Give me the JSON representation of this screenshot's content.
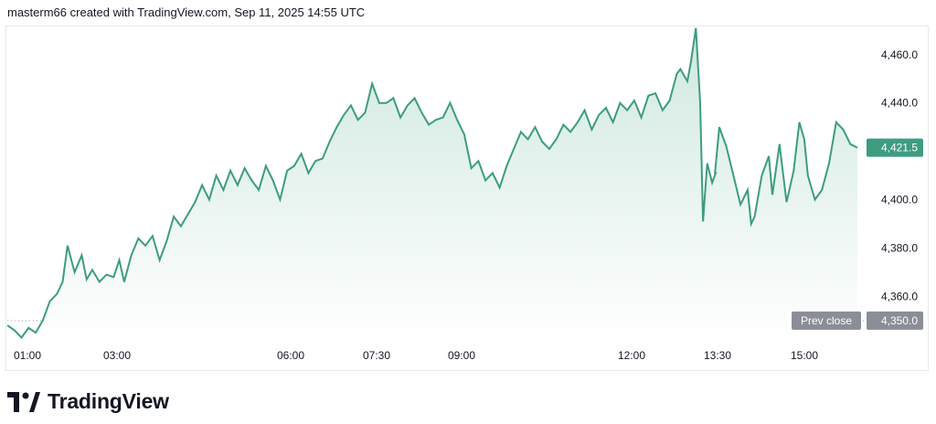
{
  "header": {
    "text": "masterm66 created with TradingView.com, Sep 11, 2025 14:55 UTC"
  },
  "brand": {
    "name": "TradingView",
    "logo_icon": "tradingview-logo-icon"
  },
  "colors": {
    "line": "#3d9c82",
    "fill_top": "#cfe8df",
    "fill_bottom": "#ffffff",
    "label_bg": "#3d9c82",
    "prev_close_bg": "#8a8e97",
    "grid": "#e6e8ec"
  },
  "chart_data": {
    "type": "area",
    "x_ticks": [
      "01:00",
      "03:00",
      "06:00",
      "07:30",
      "09:00",
      "12:00",
      "13:30",
      "15:00"
    ],
    "y_ticks": [
      "4,460.0",
      "4,440.0",
      "4,420.0",
      "4,400.0",
      "4,380.0",
      "4,360.0"
    ],
    "ylim": [
      4342,
      4472
    ],
    "last_value": 4421.5,
    "last_label": "4,421.5",
    "prev_close": 4350.0,
    "prev_close_label": "4,350.0",
    "prev_close_text": "Prev close",
    "points": [
      [
        0.0,
        4348
      ],
      [
        0.01,
        4346
      ],
      [
        0.02,
        4343
      ],
      [
        0.03,
        4347
      ],
      [
        0.04,
        4345
      ],
      [
        0.05,
        4350
      ],
      [
        0.06,
        4358
      ],
      [
        0.07,
        4361
      ],
      [
        0.078,
        4366
      ],
      [
        0.085,
        4381
      ],
      [
        0.095,
        4370
      ],
      [
        0.105,
        4377
      ],
      [
        0.112,
        4367
      ],
      [
        0.12,
        4371
      ],
      [
        0.13,
        4366
      ],
      [
        0.14,
        4369
      ],
      [
        0.15,
        4368
      ],
      [
        0.158,
        4375
      ],
      [
        0.165,
        4366
      ],
      [
        0.175,
        4377
      ],
      [
        0.185,
        4384
      ],
      [
        0.195,
        4381
      ],
      [
        0.205,
        4385
      ],
      [
        0.215,
        4375
      ],
      [
        0.225,
        4383
      ],
      [
        0.235,
        4393
      ],
      [
        0.245,
        4389
      ],
      [
        0.255,
        4394
      ],
      [
        0.265,
        4399
      ],
      [
        0.275,
        4406
      ],
      [
        0.285,
        4400
      ],
      [
        0.295,
        4410
      ],
      [
        0.305,
        4404
      ],
      [
        0.315,
        4412
      ],
      [
        0.325,
        4406
      ],
      [
        0.335,
        4413
      ],
      [
        0.345,
        4408
      ],
      [
        0.355,
        4404
      ],
      [
        0.365,
        4414
      ],
      [
        0.375,
        4408
      ],
      [
        0.385,
        4400
      ],
      [
        0.395,
        4412
      ],
      [
        0.405,
        4414
      ],
      [
        0.415,
        4419
      ],
      [
        0.425,
        4411
      ],
      [
        0.435,
        4416
      ],
      [
        0.445,
        4417
      ],
      [
        0.455,
        4424
      ],
      [
        0.465,
        4430
      ],
      [
        0.475,
        4435
      ],
      [
        0.485,
        4439
      ],
      [
        0.495,
        4433
      ],
      [
        0.505,
        4436
      ],
      [
        0.515,
        4448
      ],
      [
        0.525,
        4440
      ],
      [
        0.535,
        4440
      ],
      [
        0.545,
        4442
      ],
      [
        0.555,
        4434
      ],
      [
        0.565,
        4439
      ],
      [
        0.575,
        4442
      ],
      [
        0.585,
        4436
      ],
      [
        0.595,
        4431
      ],
      [
        0.605,
        4433
      ],
      [
        0.615,
        4434
      ],
      [
        0.625,
        4440
      ],
      [
        0.635,
        4433
      ],
      [
        0.645,
        4427
      ],
      [
        0.655,
        4413
      ],
      [
        0.665,
        4416
      ],
      [
        0.675,
        4408
      ],
      [
        0.685,
        4411
      ],
      [
        0.695,
        4405
      ],
      [
        0.705,
        4414
      ],
      [
        0.715,
        4421
      ],
      [
        0.725,
        4428
      ],
      [
        0.735,
        4425
      ],
      [
        0.745,
        4430
      ],
      [
        0.755,
        4424
      ],
      [
        0.765,
        4421
      ],
      [
        0.775,
        4425
      ],
      [
        0.785,
        4431
      ],
      [
        0.795,
        4428
      ],
      [
        0.805,
        4432
      ],
      [
        0.815,
        4437
      ],
      [
        0.825,
        4429
      ],
      [
        0.835,
        4435
      ],
      [
        0.845,
        4438
      ],
      [
        0.855,
        4432
      ],
      [
        0.865,
        4440
      ],
      [
        0.875,
        4437
      ],
      [
        0.885,
        4441
      ],
      [
        0.895,
        4434
      ],
      [
        0.905,
        4443
      ],
      [
        0.915,
        4444
      ],
      [
        0.925,
        4437
      ],
      [
        0.935,
        4441
      ],
      [
        0.945,
        4452
      ],
      [
        0.95,
        4454
      ],
      [
        0.96,
        4449
      ],
      [
        0.965,
        4457
      ],
      [
        0.972,
        4471
      ],
      [
        0.978,
        4440
      ],
      [
        0.982,
        4391
      ],
      [
        0.988,
        4415
      ],
      [
        0.995,
        4407
      ],
      [
        1.0,
        4411
      ],
      [
        0.999,
        4411
      ],
      [
        1.005,
        4430
      ],
      [
        1.015,
        4422
      ],
      [
        1.025,
        4410
      ],
      [
        1.035,
        4398
      ],
      [
        1.045,
        4404
      ],
      [
        1.05,
        4390
      ],
      [
        1.055,
        4393
      ],
      [
        1.065,
        4410
      ],
      [
        1.075,
        4418
      ],
      [
        1.08,
        4402
      ],
      [
        1.09,
        4423
      ],
      [
        1.1,
        4399
      ],
      [
        1.11,
        4412
      ],
      [
        1.118,
        4432
      ],
      [
        1.125,
        4425
      ],
      [
        1.13,
        4410
      ],
      [
        1.14,
        4400
      ],
      [
        1.15,
        4404
      ],
      [
        1.16,
        4415
      ],
      [
        1.17,
        4432
      ],
      [
        1.18,
        4429
      ],
      [
        1.19,
        4423
      ],
      [
        1.2,
        4421.5
      ]
    ]
  }
}
